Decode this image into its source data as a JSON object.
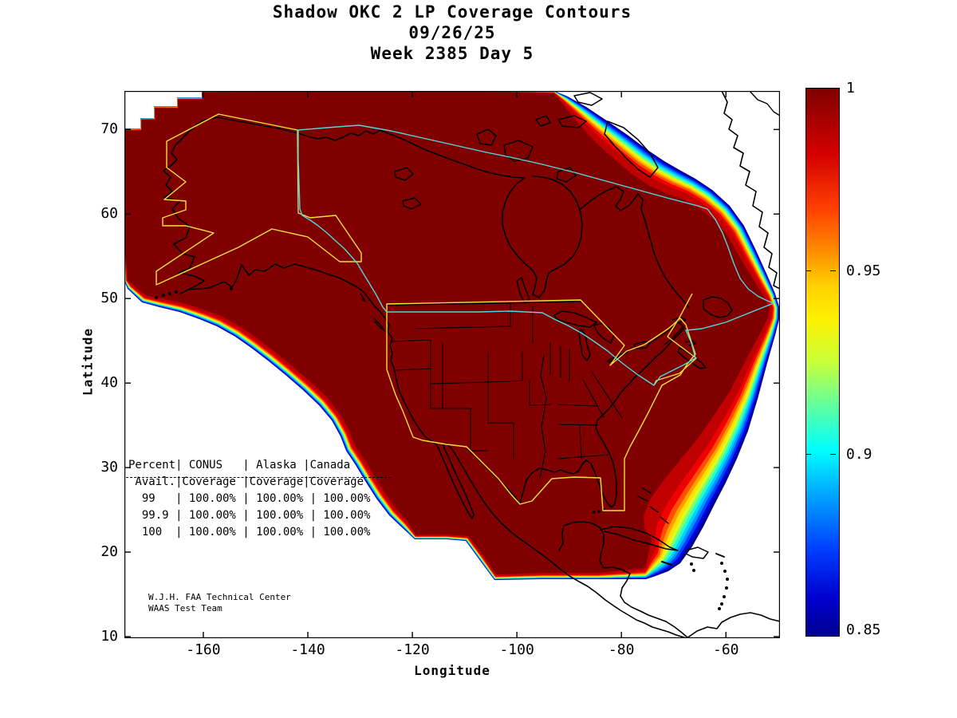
{
  "title": {
    "line1": "Shadow OKC 2 LP Coverage Contours",
    "line2": "09/26/25",
    "line3": "Week 2385 Day 5"
  },
  "axes": {
    "xlabel": "Longitude",
    "ylabel": "Latitude",
    "x_ticks": [
      -160,
      -140,
      -120,
      -100,
      -80,
      -60
    ],
    "y_ticks": [
      70,
      60,
      50,
      40,
      30,
      20,
      10
    ]
  },
  "colorbar": {
    "labels": [
      "1",
      "0.95",
      "0.9",
      "0.85"
    ],
    "values": [
      1,
      0.95,
      0.9,
      0.85
    ],
    "min": 0.85,
    "max": 1,
    "colormap": "jet"
  },
  "stats_table": {
    "lines": [
      "Percent| CONUS   | Alaska |Canada",
      " Avail.|Coverage |Coverage|Coverage",
      "  99   | 100.00% | 100.00% | 100.00%",
      "  99.9 | 100.00% | 100.00% | 100.00%",
      "  100  | 100.00% | 100.00% | 100.00%"
    ]
  },
  "credit": {
    "line1": "W.J.H. FAA Technical Center",
    "line2": "WAAS Test Team"
  },
  "style": {
    "max_color": "#800000",
    "region_boundary_color": "#f0e23a",
    "geo_line_color": "#4fd8e0",
    "land_outline_color": "#000000",
    "jet_palette_outer_to_inner": [
      "#000090",
      "#0000e0",
      "#0040ff",
      "#0090ff",
      "#00d0ff",
      "#20ffd0",
      "#80ff70",
      "#d8ff20",
      "#ffe000",
      "#ffa000",
      "#ff5000",
      "#f00000",
      "#c00000",
      "#800000"
    ]
  },
  "chart_data": {
    "type": "heatmap",
    "subtype": "geographic-coverage-contour-map",
    "title": "Shadow OKC 2 LP Coverage Contours",
    "date": "09/26/25",
    "week": 2385,
    "day": 5,
    "xlabel": "Longitude",
    "ylabel": "Latitude",
    "xlim": [
      -175,
      -49
    ],
    "ylim": [
      9.8,
      74.6
    ],
    "x_ticks": [
      -160,
      -140,
      -120,
      -100,
      -80,
      -60
    ],
    "y_ticks": [
      70,
      60,
      50,
      40,
      30,
      20,
      10
    ],
    "grid": false,
    "legend_position": "right-colorbar",
    "colorbar": {
      "min": 0.85,
      "max": 1,
      "tick_labels": [
        "1",
        "0.95",
        "0.9",
        "0.85"
      ],
      "colormap": "jet"
    },
    "description": "LP coverage availability contours over North America; interior plateau at 1.0 (dark red) with rainbow fringe bands down to 0.85 along Pacific, Atlantic and Greenland edges",
    "regions_outlined": [
      "CONUS",
      "Alaska",
      "Canada"
    ],
    "coverage_table": {
      "columns": [
        "Percent Avail.",
        "CONUS Coverage",
        "Alaska Coverage",
        "Canada Coverage"
      ],
      "rows": [
        [
          "99",
          "100.00%",
          "100.00%",
          "100.00%"
        ],
        [
          "99.9",
          "100.00%",
          "100.00%",
          "100.00%"
        ],
        [
          "100",
          "100.00%",
          "100.00%",
          "100.00%"
        ]
      ]
    },
    "annotation": "W.J.H. FAA Technical Center / WAAS Test Team"
  }
}
